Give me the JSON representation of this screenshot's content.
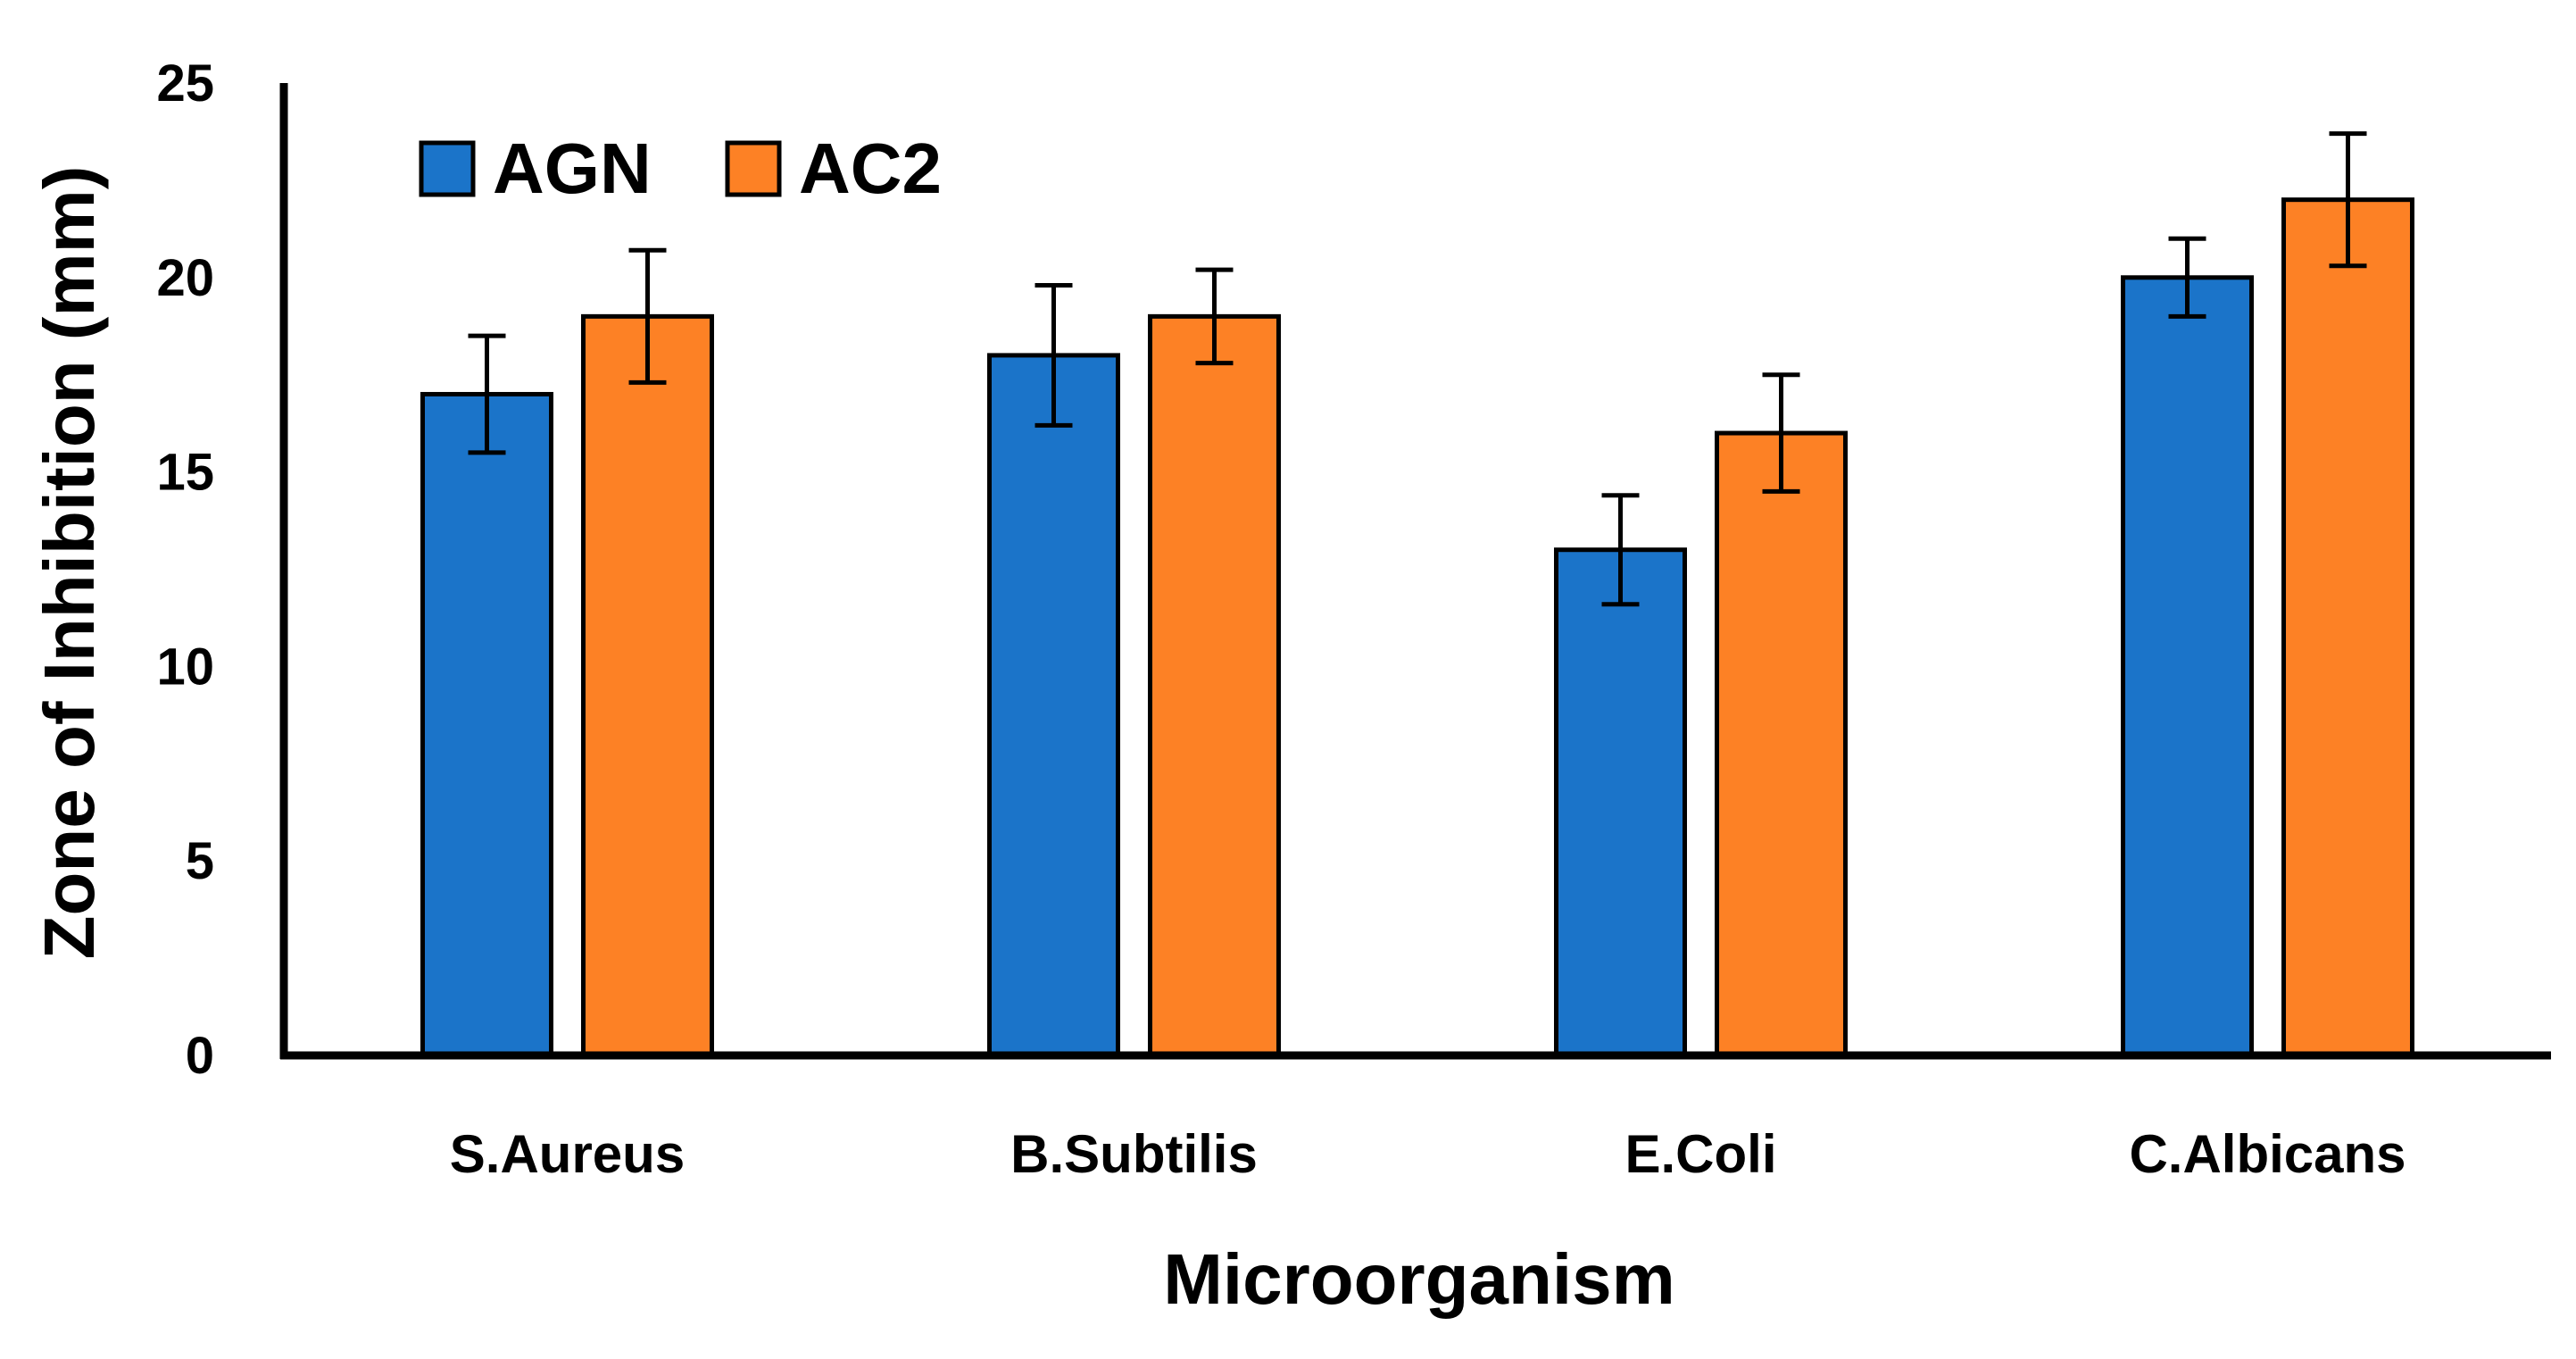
{
  "chart_data": {
    "type": "bar",
    "title": "",
    "xlabel": "Microorganism",
    "ylabel": "Zone of Inhibition (mm)",
    "ylim": [
      0,
      25
    ],
    "yticks": [
      0,
      5,
      10,
      15,
      20,
      25
    ],
    "ytick_labels": [
      "0",
      "5",
      "10",
      "15",
      "20",
      "25"
    ],
    "grid": false,
    "legend_position": "top-left",
    "categories": [
      "S.Aureus",
      "B.Subtilis",
      "E.Coli",
      "C.Albicans"
    ],
    "series": [
      {
        "name": "AGN",
        "color": "#1b74c9",
        "values": [
          17,
          18,
          13,
          20
        ],
        "errors": [
          1.5,
          1.8,
          1.4,
          1.0
        ]
      },
      {
        "name": "AC2",
        "color": "#fd8125",
        "values": [
          19,
          19,
          16,
          22
        ],
        "errors": [
          1.7,
          1.2,
          1.5,
          1.7
        ]
      }
    ]
  }
}
